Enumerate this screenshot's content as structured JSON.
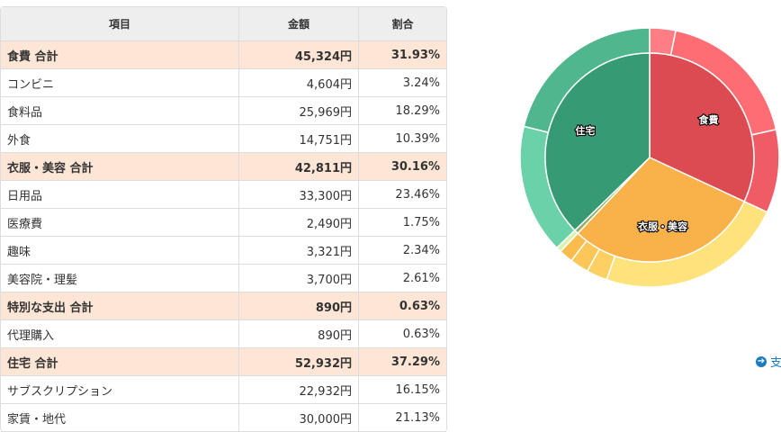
{
  "table": {
    "headers": [
      "項目",
      "金額",
      "割合"
    ],
    "rows": [
      {
        "label": "食費 合計",
        "amount": "45,324円",
        "pct": "31.93%",
        "sum": true
      },
      {
        "label": "コンビニ",
        "amount": "4,604円",
        "pct": "3.24%"
      },
      {
        "label": "食料品",
        "amount": "25,969円",
        "pct": "18.29%"
      },
      {
        "label": "外食",
        "amount": "14,751円",
        "pct": "10.39%"
      },
      {
        "label": "衣服・美容 合計",
        "amount": "42,811円",
        "pct": "30.16%",
        "sum": true
      },
      {
        "label": "日用品",
        "amount": "33,300円",
        "pct": "23.46%"
      },
      {
        "label": "医療費",
        "amount": "2,490円",
        "pct": "1.75%"
      },
      {
        "label": "趣味",
        "amount": "3,321円",
        "pct": "2.34%"
      },
      {
        "label": "美容院・理髪",
        "amount": "3,700円",
        "pct": "2.61%"
      },
      {
        "label": "特別な支出 合計",
        "amount": "890円",
        "pct": "0.63%",
        "sum": true
      },
      {
        "label": "代理購入",
        "amount": "890円",
        "pct": "0.63%"
      },
      {
        "label": "住宅 合計",
        "amount": "52,932円",
        "pct": "37.29%",
        "sum": true
      },
      {
        "label": "サブスクリプション",
        "amount": "22,932円",
        "pct": "16.15%"
      },
      {
        "label": "家賃・地代",
        "amount": "30,000円",
        "pct": "21.13%"
      }
    ]
  },
  "chart_data": {
    "type": "pie",
    "title": "",
    "inner": [
      {
        "name": "食費",
        "value": 45324,
        "color": "#dd4b52",
        "label": "食費"
      },
      {
        "name": "衣服・美容",
        "value": 42811,
        "color": "#f9b24a",
        "label": "衣服・美容"
      },
      {
        "name": "特別な支出",
        "value": 890,
        "color": "#8db36a",
        "label": ""
      },
      {
        "name": "住宅",
        "value": 52932,
        "color": "#369b75",
        "label": "住宅"
      }
    ],
    "outer": [
      {
        "name": "コンビニ",
        "value": 4604,
        "color": "#ff7d85"
      },
      {
        "name": "食料品",
        "value": 25969,
        "color": "#ff6d74"
      },
      {
        "name": "外食",
        "value": 14751,
        "color": "#ef5c66"
      },
      {
        "name": "日用品",
        "value": 33300,
        "color": "#fee27c"
      },
      {
        "name": "美容院・理髪",
        "value": 3700,
        "color": "#fdd064"
      },
      {
        "name": "趣味",
        "value": 3321,
        "color": "#fcc658"
      },
      {
        "name": "医療費",
        "value": 2490,
        "color": "#fbbc4e"
      },
      {
        "name": "代理購入",
        "value": 890,
        "color": "#d9f3b0"
      },
      {
        "name": "サブスクリプション",
        "value": 22932,
        "color": "#6ad1a8"
      },
      {
        "name": "家賃・地代",
        "value": 30000,
        "color": "#50b68e"
      }
    ]
  },
  "link": {
    "icon": "arrow-circle-right-icon",
    "text": "支"
  }
}
